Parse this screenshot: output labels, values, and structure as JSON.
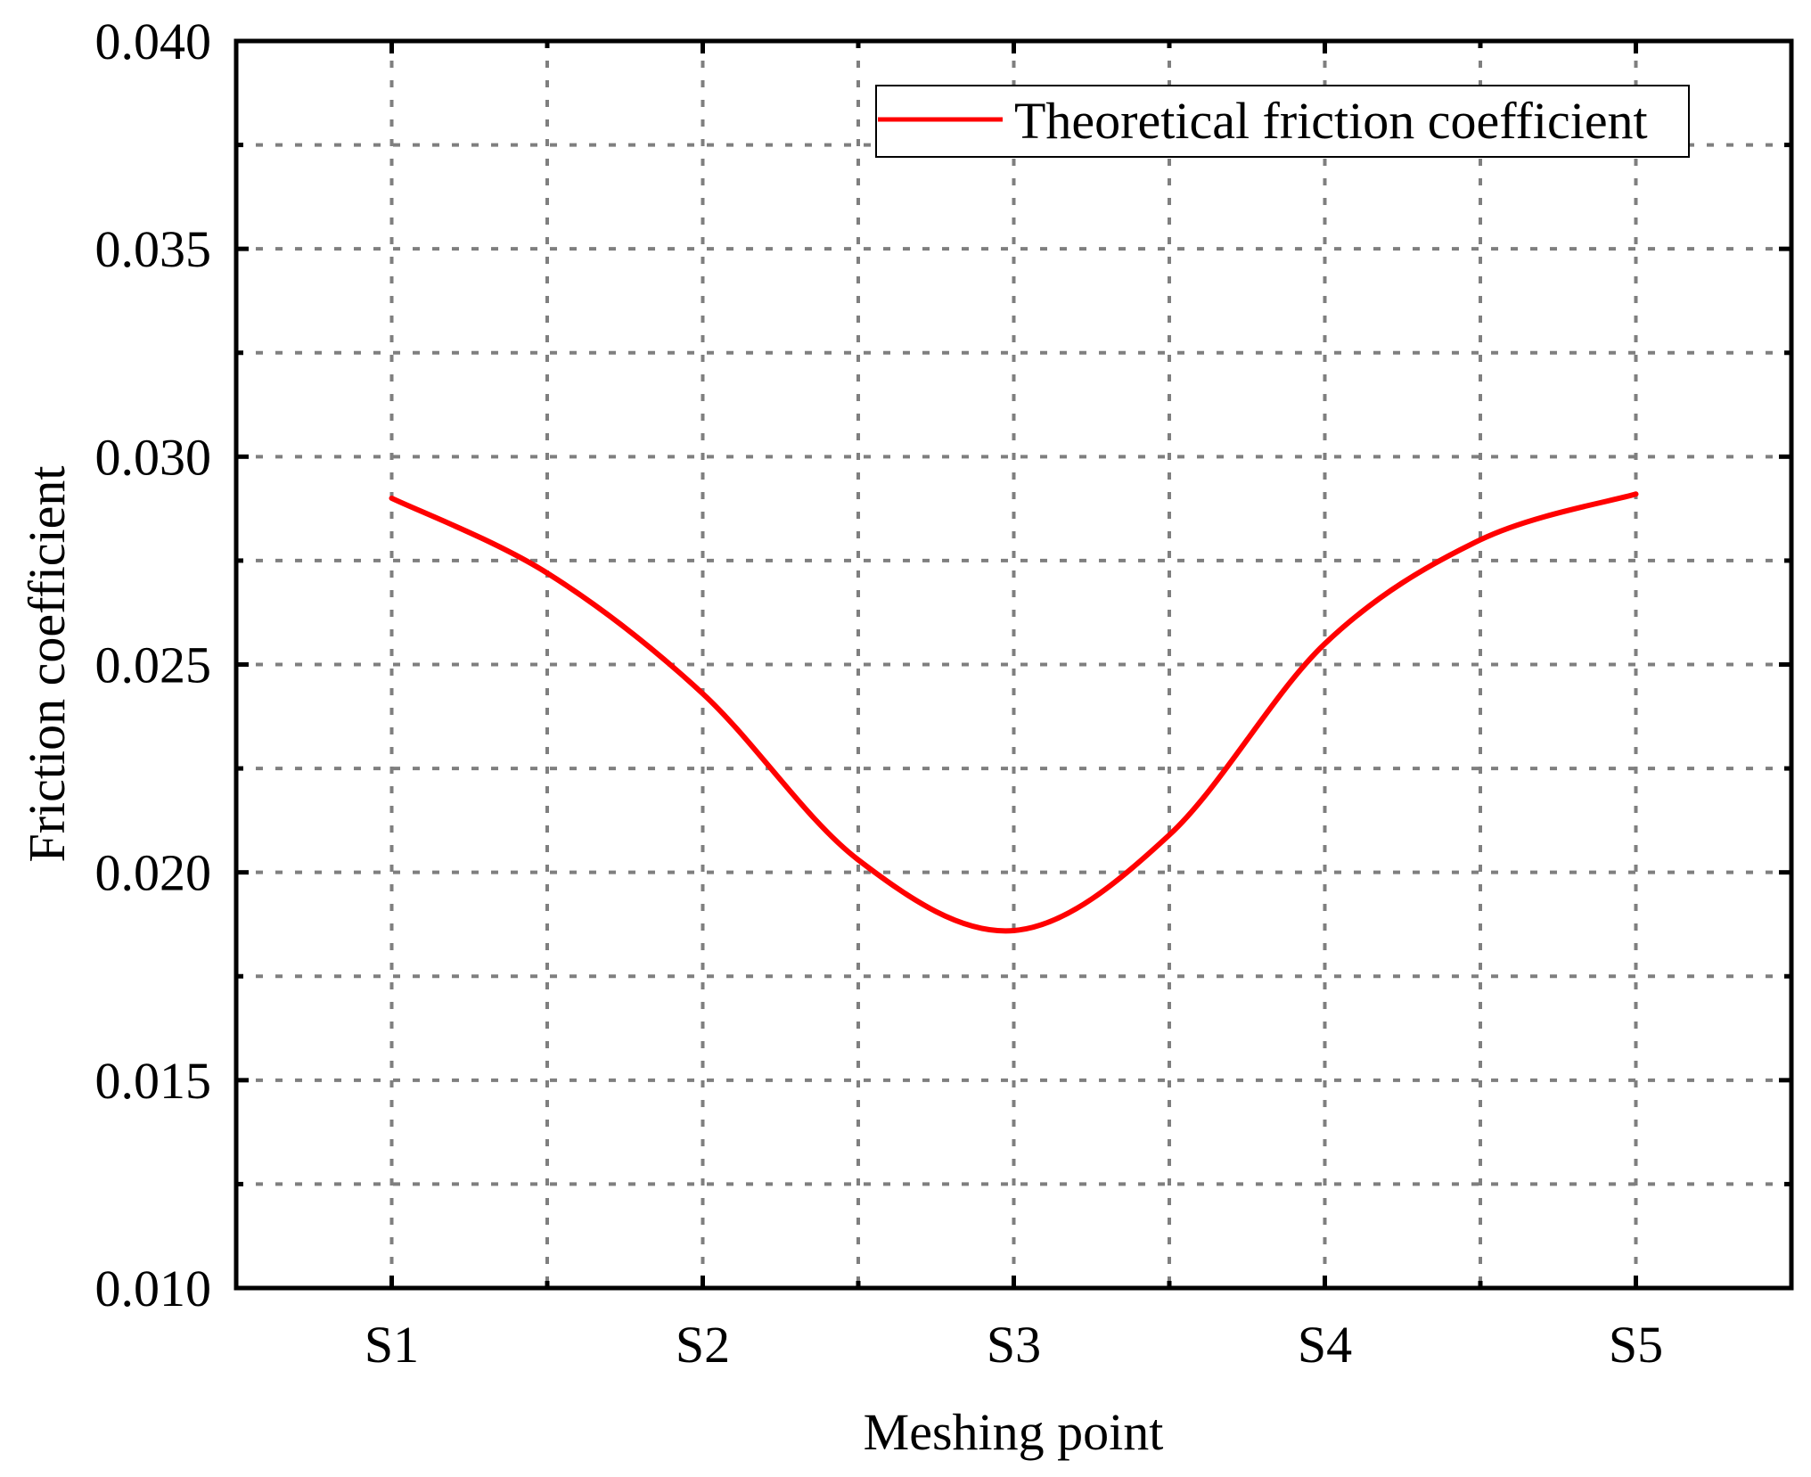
{
  "chart_data": {
    "type": "line",
    "title": "",
    "xlabel": "Meshing point",
    "ylabel": "Friction coefficient",
    "categories": [
      "S1",
      "S2",
      "S3",
      "S4",
      "S5"
    ],
    "x_range": [
      0.5,
      5.5
    ],
    "ylim": [
      0.01,
      0.04
    ],
    "yticks": [
      "0.010",
      "0.015",
      "0.020",
      "0.025",
      "0.030",
      "0.035",
      "0.040"
    ],
    "grid": true,
    "legend_position": "top-right",
    "series": [
      {
        "name": "Theoretical friction coefficient",
        "color": "#ff0000",
        "x": [
          1.0,
          1.5,
          2.0,
          2.5,
          3.0,
          3.5,
          4.0,
          4.5,
          5.0
        ],
        "y": [
          0.029,
          0.0272,
          0.0243,
          0.0203,
          0.0186,
          0.0209,
          0.0255,
          0.028,
          0.0291
        ]
      }
    ]
  }
}
